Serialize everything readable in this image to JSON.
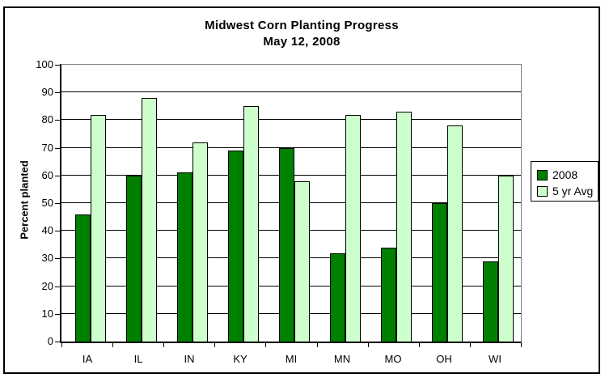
{
  "chart_data": {
    "type": "bar",
    "title": "Midwest Corn Planting Progress",
    "subtitle": "May 12, 2008",
    "ylabel": "Percent planted",
    "xlabel": "",
    "categories": [
      "IA",
      "IL",
      "IN",
      "KY",
      "MI",
      "MN",
      "MO",
      "OH",
      "WI"
    ],
    "series": [
      {
        "name": "2008",
        "color": "#008000",
        "values": [
          46,
          60,
          61,
          69,
          70,
          32,
          34,
          50,
          29
        ]
      },
      {
        "name": "5 yr Avg",
        "color": "#CCFFCC",
        "values": [
          82,
          88,
          72,
          85,
          58,
          82,
          83,
          78,
          60
        ]
      }
    ],
    "ylim": [
      0,
      100
    ],
    "yticks": [
      0,
      10,
      20,
      30,
      40,
      50,
      60,
      70,
      80,
      90,
      100
    ],
    "grid": true,
    "legend_position": "right",
    "colors": {
      "bar_2008": "#008000",
      "bar_5yr_avg": "#CCFFCC",
      "gridline": "#000000",
      "plot_border_top_right": "#808080",
      "axis": "#000000",
      "background": "#FFFFFF",
      "bar_outline": "#000000"
    }
  }
}
